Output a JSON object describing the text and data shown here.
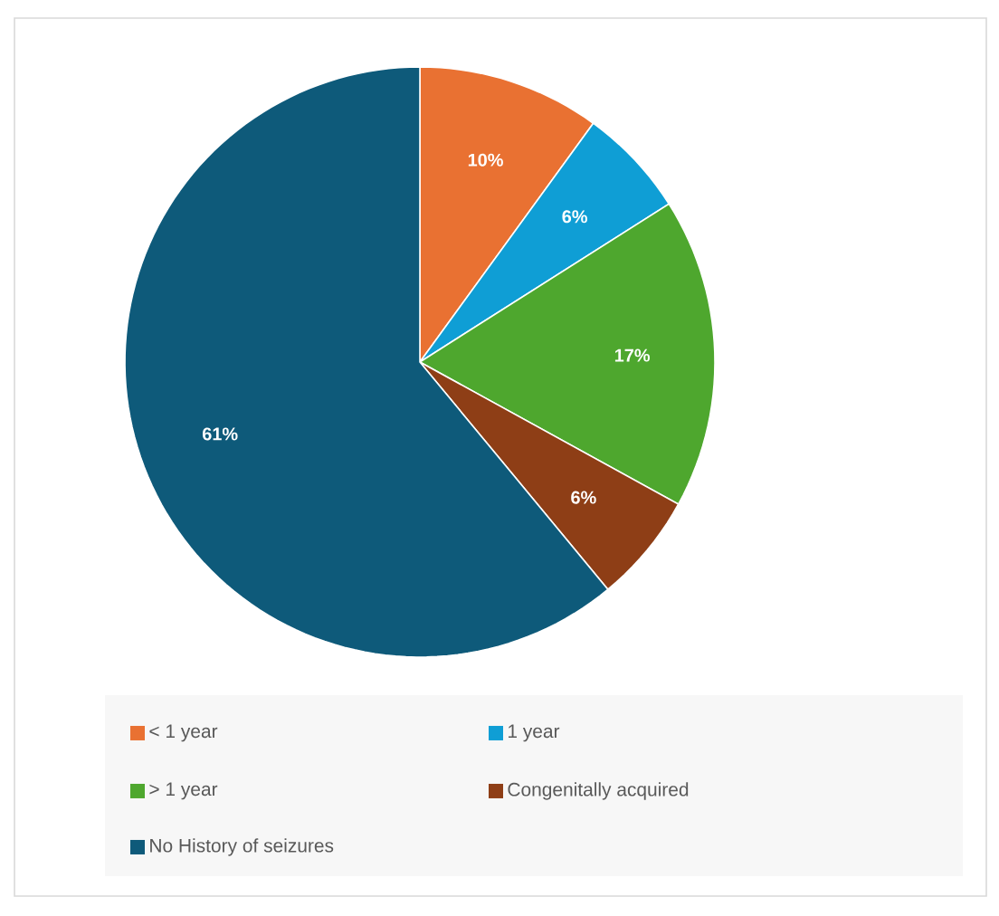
{
  "chart_data": {
    "type": "pie",
    "categories": [
      "< 1 year",
      "1 year",
      "> 1 year",
      "Congenitally acquired",
      "No History of seizures"
    ],
    "values": [
      10,
      6,
      17,
      6,
      61
    ],
    "value_labels": [
      "10%",
      "6%",
      "17%",
      "6%",
      "61%"
    ],
    "colors": [
      "#e97132",
      "#0f9ed5",
      "#4ea72e",
      "#8e3e16",
      "#0e5a7a"
    ],
    "legend": "bottom"
  }
}
